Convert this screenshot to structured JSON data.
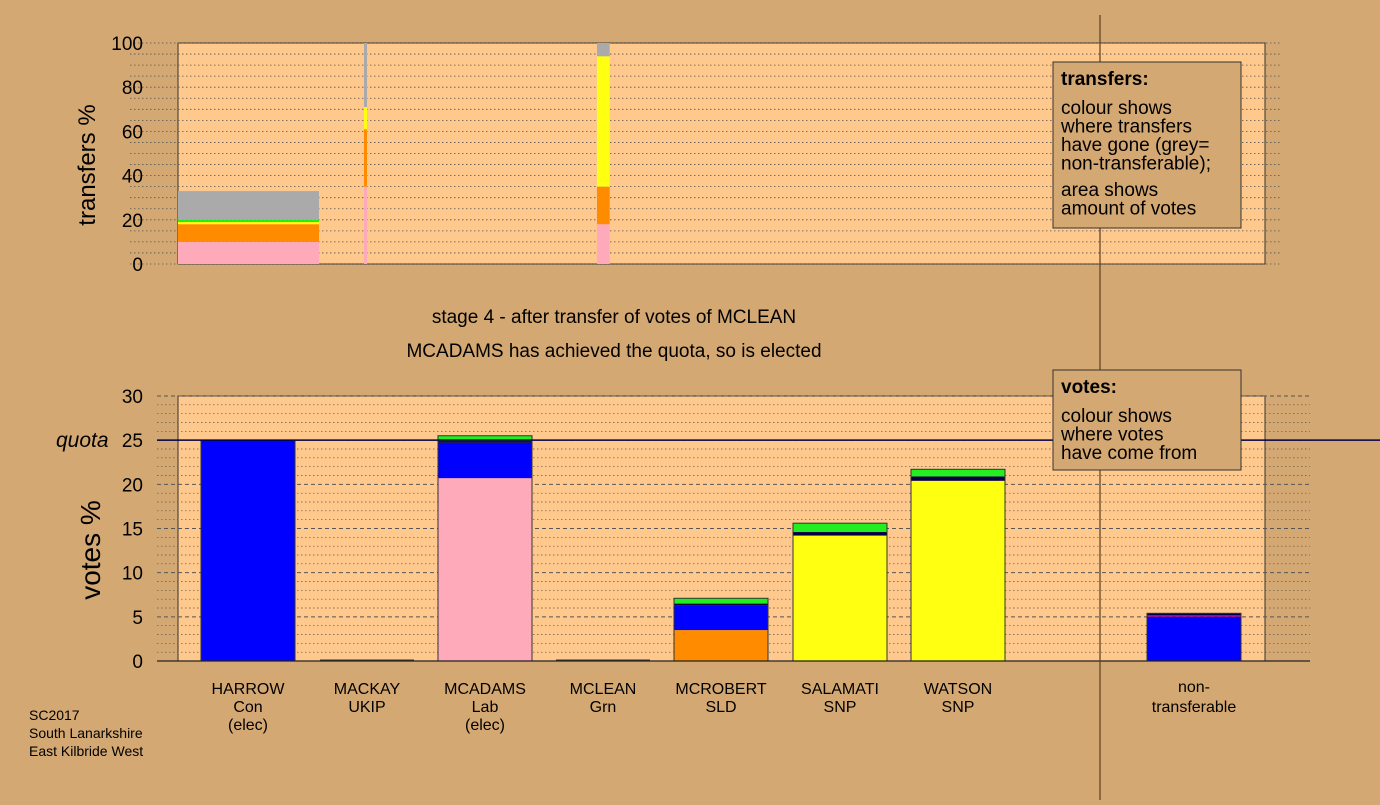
{
  "page": {
    "stage_title": "stage 4 - after transfer of votes of MCLEAN",
    "stage_subtitle": "MCADAMS has achieved the quota, so is elected",
    "footer_lines": [
      "SC2017",
      "South Lanarkshire",
      "East Kilbride West"
    ]
  },
  "colors": {
    "background": "#d4a872",
    "plot_bg": "#ffc88c",
    "Con": "#0000ff",
    "Lab": "#ffaabb",
    "SNP": "#ffff11",
    "SLD": "#ff8c00",
    "Grn": "#22ee22",
    "UKIP": "#990099",
    "nontransferable": "#aaaaaa",
    "quota_line": "#000044"
  },
  "legends": {
    "transfers": {
      "title": "transfers:",
      "lines": [
        "colour shows",
        "where transfers",
        "have gone (grey=",
        "non-transferable);",
        "area shows",
        "amount of votes"
      ]
    },
    "votes": {
      "title": "votes:",
      "lines": [
        "colour shows",
        "where votes",
        "have come from"
      ]
    }
  },
  "chart_data": [
    {
      "type": "bar",
      "name": "transfers",
      "ylabel": "transfers %",
      "ylim": [
        0,
        100
      ],
      "yticks": [
        0,
        20,
        40,
        60,
        80,
        100
      ],
      "grid": "dotted",
      "columns": [
        {
          "candidate": "HARROW",
          "width_fraction": 1.0,
          "segments": [
            {
              "party": "Lab",
              "value": 10
            },
            {
              "party": "SLD",
              "value": 8
            },
            {
              "party": "SNP",
              "value": 1
            },
            {
              "party": "Grn",
              "value": 1
            },
            {
              "party": "nontransferable",
              "value": 13
            }
          ]
        },
        {
          "candidate": "MACKAY",
          "width_fraction": 0.02,
          "segments": [
            {
              "party": "Lab",
              "value": 35
            },
            {
              "party": "SLD",
              "value": 26
            },
            {
              "party": "SNP",
              "value": 10
            },
            {
              "party": "nontransferable",
              "value": 29
            }
          ]
        },
        {
          "candidate": "MCLEAN",
          "width_fraction": 0.09,
          "segments": [
            {
              "party": "Lab",
              "value": 18
            },
            {
              "party": "SLD",
              "value": 17
            },
            {
              "party": "SNP",
              "value": 59
            },
            {
              "party": "nontransferable",
              "value": 6
            }
          ]
        }
      ]
    },
    {
      "type": "bar",
      "name": "votes",
      "ylabel": "votes %",
      "ylim": [
        0,
        30
      ],
      "yticks": [
        0,
        5,
        10,
        15,
        20,
        25,
        30
      ],
      "quota": 25,
      "quota_label": "quota",
      "grid": "dashed",
      "categories": [
        {
          "name": "HARROW",
          "party": "Con",
          "note": "(elec)"
        },
        {
          "name": "MACKAY",
          "party": "UKIP",
          "note": ""
        },
        {
          "name": "MCADAMS",
          "party": "Lab",
          "note": "(elec)"
        },
        {
          "name": "MCLEAN",
          "party": "Grn",
          "note": ""
        },
        {
          "name": "MCROBERT",
          "party": "SLD",
          "note": ""
        },
        {
          "name": "SALAMATI",
          "party": "SNP",
          "note": ""
        },
        {
          "name": "WATSON",
          "party": "SNP",
          "note": ""
        }
      ],
      "stacks": [
        [
          {
            "party": "Con",
            "value": 25.0
          }
        ],
        [],
        [
          {
            "party": "Lab",
            "value": 20.7
          },
          {
            "party": "Con",
            "value": 4.0
          },
          {
            "party": "quota_line",
            "value": 0.2
          },
          {
            "party": "Grn",
            "value": 0.6
          }
        ],
        [],
        [
          {
            "party": "SLD",
            "value": 3.5
          },
          {
            "party": "Con",
            "value": 2.8
          },
          {
            "party": "quota_line",
            "value": 0.2
          },
          {
            "party": "Grn",
            "value": 0.6
          }
        ],
        [
          {
            "party": "SNP",
            "value": 14.2
          },
          {
            "party": "quota_line",
            "value": 0.4
          },
          {
            "party": "Grn",
            "value": 1.0
          }
        ],
        [
          {
            "party": "SNP",
            "value": 20.4
          },
          {
            "party": "quota_line",
            "value": 0.5
          },
          {
            "party": "Grn",
            "value": 0.8
          }
        ]
      ],
      "nontransferable": {
        "label_lines": [
          "non-",
          "transferable"
        ],
        "stack": [
          {
            "party": "Con",
            "value": 5.0
          },
          {
            "party": "UKIP",
            "value": 0.2
          },
          {
            "party": "quota_line",
            "value": 0.2
          }
        ]
      }
    }
  ]
}
